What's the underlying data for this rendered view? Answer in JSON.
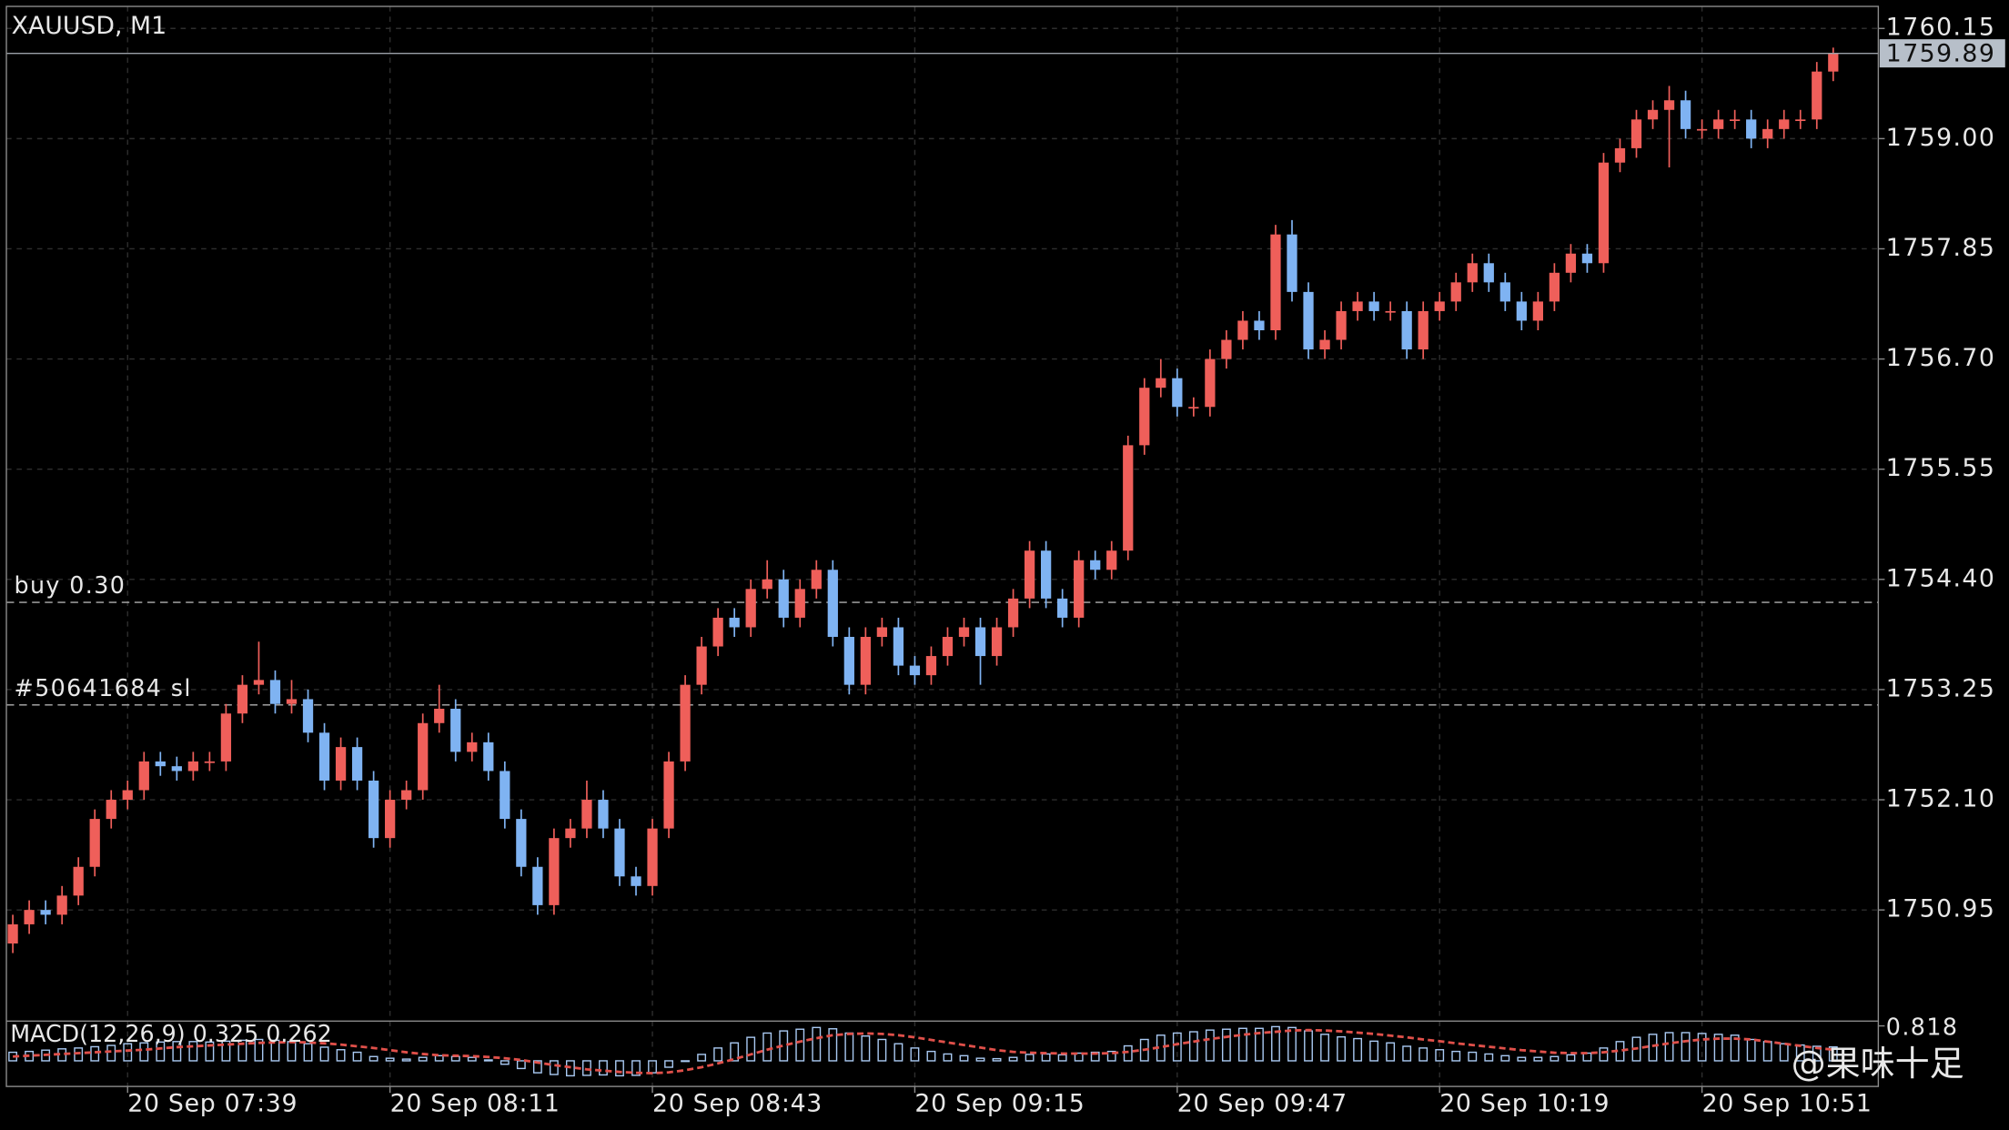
{
  "chart_data": {
    "type": "candlestick",
    "title": "XAUUSD, M1",
    "watermark": "@果味十足",
    "up_color": "#ef5f5a",
    "down_color": "#7fb3f2",
    "grid": true,
    "categories": [
      null,
      null,
      null,
      null,
      null,
      null,
      null,
      "20 Sep 07:39",
      null,
      null,
      null,
      null,
      null,
      null,
      null,
      null,
      null,
      null,
      null,
      null,
      null,
      null,
      null,
      "20 Sep 08:11",
      null,
      null,
      null,
      null,
      null,
      null,
      null,
      null,
      null,
      null,
      null,
      null,
      null,
      null,
      null,
      "20 Sep 08:43",
      null,
      null,
      null,
      null,
      null,
      null,
      null,
      null,
      null,
      null,
      null,
      null,
      null,
      null,
      null,
      "20 Sep 09:15",
      null,
      null,
      null,
      null,
      null,
      null,
      null,
      null,
      null,
      null,
      null,
      null,
      null,
      null,
      null,
      "20 Sep 09:47",
      null,
      null,
      null,
      null,
      null,
      null,
      null,
      null,
      null,
      null,
      null,
      null,
      null,
      null,
      null,
      "20 Sep 10:19",
      null,
      null,
      null,
      null,
      null,
      null,
      null,
      null,
      null,
      null,
      null,
      null,
      null,
      null,
      null,
      "20 Sep 10:51",
      null,
      null,
      null,
      null,
      null,
      null,
      null,
      null
    ],
    "open": [
      1750.6,
      1750.8,
      1750.95,
      1750.9,
      1751.1,
      1751.4,
      1751.9,
      1752.1,
      1752.2,
      1752.5,
      1752.45,
      1752.4,
      1752.5,
      1752.5,
      1753.0,
      1753.3,
      1753.35,
      1753.1,
      1753.15,
      1752.8,
      1752.3,
      1752.65,
      1752.3,
      1751.7,
      1752.1,
      1752.2,
      1752.9,
      1753.05,
      1752.6,
      1752.7,
      1752.4,
      1751.9,
      1751.4,
      1751.0,
      1751.7,
      1751.8,
      1752.1,
      1751.8,
      1751.3,
      1751.2,
      1751.8,
      1752.5,
      1753.3,
      1753.7,
      1754.0,
      1753.9,
      1754.3,
      1754.4,
      1754.0,
      1754.3,
      1754.5,
      1753.8,
      1753.3,
      1753.8,
      1753.9,
      1753.5,
      1753.4,
      1753.6,
      1753.8,
      1753.9,
      1753.6,
      1753.9,
      1754.2,
      1754.7,
      1754.2,
      1754.0,
      1754.6,
      1754.5,
      1754.7,
      1755.8,
      1756.4,
      1756.5,
      1756.2,
      1756.2,
      1756.7,
      1756.9,
      1757.1,
      1757.0,
      1758.0,
      1757.4,
      1756.8,
      1756.9,
      1757.2,
      1757.3,
      1757.2,
      1757.2,
      1756.8,
      1757.2,
      1757.3,
      1757.5,
      1757.7,
      1757.5,
      1757.3,
      1757.1,
      1757.3,
      1757.6,
      1757.8,
      1757.7,
      1758.75,
      1758.9,
      1759.2,
      1759.3,
      1759.4,
      1759.1,
      1759.1,
      1759.2,
      1759.2,
      1759.0,
      1759.1,
      1759.2,
      1759.2,
      1759.7
    ],
    "high": [
      1750.9,
      1751.05,
      1751.05,
      1751.2,
      1751.5,
      1752.0,
      1752.2,
      1752.3,
      1752.6,
      1752.6,
      1752.55,
      1752.6,
      1752.6,
      1753.1,
      1753.4,
      1753.75,
      1753.45,
      1753.35,
      1753.25,
      1752.9,
      1752.75,
      1752.75,
      1752.4,
      1752.2,
      1752.3,
      1753.0,
      1753.3,
      1753.15,
      1752.8,
      1752.8,
      1752.5,
      1752.0,
      1751.5,
      1751.8,
      1751.9,
      1752.3,
      1752.2,
      1751.9,
      1751.4,
      1751.9,
      1752.6,
      1753.4,
      1753.8,
      1754.1,
      1754.1,
      1754.4,
      1754.6,
      1754.5,
      1754.4,
      1754.6,
      1754.6,
      1753.9,
      1753.9,
      1754.0,
      1754.0,
      1753.6,
      1753.7,
      1753.9,
      1754.0,
      1754.0,
      1754.0,
      1754.3,
      1754.8,
      1754.8,
      1754.3,
      1754.7,
      1754.7,
      1754.8,
      1755.9,
      1756.5,
      1756.7,
      1756.6,
      1756.3,
      1756.8,
      1757.0,
      1757.2,
      1757.2,
      1758.1,
      1758.15,
      1757.5,
      1757.0,
      1757.3,
      1757.4,
      1757.4,
      1757.3,
      1757.3,
      1757.3,
      1757.4,
      1757.6,
      1757.8,
      1757.8,
      1757.6,
      1757.4,
      1757.4,
      1757.7,
      1757.9,
      1757.9,
      1758.85,
      1759.0,
      1759.3,
      1759.4,
      1759.55,
      1759.5,
      1759.2,
      1759.3,
      1759.3,
      1759.3,
      1759.2,
      1759.3,
      1759.3,
      1759.8,
      1759.95
    ],
    "low": [
      1750.5,
      1750.7,
      1750.8,
      1750.8,
      1751.0,
      1751.3,
      1751.8,
      1752.0,
      1752.1,
      1752.35,
      1752.3,
      1752.3,
      1752.4,
      1752.4,
      1752.9,
      1753.2,
      1753.0,
      1753.0,
      1752.7,
      1752.2,
      1752.2,
      1752.2,
      1751.6,
      1751.6,
      1752.0,
      1752.1,
      1752.8,
      1752.5,
      1752.5,
      1752.3,
      1751.8,
      1751.3,
      1750.9,
      1750.9,
      1751.6,
      1751.7,
      1751.7,
      1751.2,
      1751.1,
      1751.1,
      1751.7,
      1752.4,
      1753.2,
      1753.6,
      1753.8,
      1753.8,
      1754.2,
      1753.9,
      1753.9,
      1754.2,
      1753.7,
      1753.2,
      1753.2,
      1753.7,
      1753.4,
      1753.3,
      1753.3,
      1753.5,
      1753.7,
      1753.3,
      1753.5,
      1753.8,
      1754.1,
      1754.1,
      1753.9,
      1753.9,
      1754.4,
      1754.4,
      1754.6,
      1755.7,
      1756.3,
      1756.1,
      1756.1,
      1756.1,
      1756.6,
      1756.8,
      1756.9,
      1756.9,
      1757.3,
      1756.7,
      1756.7,
      1756.8,
      1757.1,
      1757.1,
      1757.1,
      1756.7,
      1756.7,
      1757.1,
      1757.2,
      1757.4,
      1757.4,
      1757.2,
      1757.0,
      1757.0,
      1757.2,
      1757.5,
      1757.6,
      1757.6,
      1758.65,
      1758.8,
      1759.1,
      1758.7,
      1759.0,
      1759.0,
      1759.0,
      1759.1,
      1758.9,
      1758.9,
      1759.0,
      1759.1,
      1759.1,
      1759.6
    ],
    "close": [
      1750.8,
      1750.95,
      1750.9,
      1751.1,
      1751.4,
      1751.9,
      1752.1,
      1752.2,
      1752.5,
      1752.45,
      1752.4,
      1752.5,
      1752.5,
      1753.0,
      1753.3,
      1753.35,
      1753.1,
      1753.15,
      1752.8,
      1752.3,
      1752.65,
      1752.3,
      1751.7,
      1752.1,
      1752.2,
      1752.9,
      1753.05,
      1752.6,
      1752.7,
      1752.4,
      1751.9,
      1751.4,
      1751.0,
      1751.7,
      1751.8,
      1752.1,
      1751.8,
      1751.3,
      1751.2,
      1751.8,
      1752.5,
      1753.3,
      1753.7,
      1754.0,
      1753.9,
      1754.3,
      1754.4,
      1754.0,
      1754.3,
      1754.5,
      1753.8,
      1753.3,
      1753.8,
      1753.9,
      1753.5,
      1753.4,
      1753.6,
      1753.8,
      1753.9,
      1753.6,
      1753.9,
      1754.2,
      1754.7,
      1754.2,
      1754.0,
      1754.6,
      1754.5,
      1754.7,
      1755.8,
      1756.4,
      1756.5,
      1756.2,
      1756.2,
      1756.7,
      1756.9,
      1757.1,
      1757.0,
      1758.0,
      1757.4,
      1756.8,
      1756.9,
      1757.2,
      1757.3,
      1757.2,
      1757.2,
      1756.8,
      1757.2,
      1757.3,
      1757.5,
      1757.7,
      1757.5,
      1757.3,
      1757.1,
      1757.3,
      1757.6,
      1757.8,
      1757.7,
      1758.75,
      1758.9,
      1759.2,
      1759.3,
      1759.4,
      1759.1,
      1759.1,
      1759.2,
      1759.2,
      1759.0,
      1759.1,
      1759.2,
      1759.2,
      1759.7,
      1759.89
    ],
    "ylim": [
      1749.79,
      1760.38
    ],
    "yticks": [
      1760.15,
      {
        "value": 1759,
        "label": "1759.00"
      },
      1757.85,
      {
        "value": 1756.7,
        "label": "1756.70"
      },
      1755.55,
      {
        "value": 1754.4,
        "label": "1754.40"
      },
      1753.25,
      {
        "value": 1752.1,
        "label": "1752.10"
      },
      1750.95
    ],
    "orders": [
      {
        "label": "buy 0.30",
        "price": 1754.16
      },
      {
        "label": "#50641684 sl",
        "price": 1753.09
      }
    ],
    "macd": {
      "type": "macd",
      "label": "MACD(12,26,9)",
      "ylim": [
        -0.6,
        0.9
      ],
      "yticks": [
        0.818
      ],
      "series": [
        {
          "color": "#a9c9f2",
          "values": [
            0.2,
            0.22,
            0.25,
            0.28,
            0.3,
            0.33,
            0.36,
            0.4,
            0.42,
            0.44,
            0.45,
            0.45,
            0.44,
            0.46,
            0.48,
            0.5,
            0.48,
            0.45,
            0.4,
            0.32,
            0.26,
            0.2,
            0.1,
            0.06,
            0.04,
            0.08,
            0.12,
            0.1,
            0.08,
            0.02,
            -0.08,
            -0.18,
            -0.28,
            -0.32,
            -0.35,
            -0.34,
            -0.33,
            -0.35,
            -0.34,
            -0.28,
            -0.15,
            0.0,
            0.15,
            0.3,
            0.42,
            0.55,
            0.65,
            0.7,
            0.74,
            0.78,
            0.75,
            0.65,
            0.58,
            0.5,
            0.4,
            0.3,
            0.22,
            0.16,
            0.12,
            0.06,
            0.05,
            0.08,
            0.15,
            0.16,
            0.14,
            0.18,
            0.2,
            0.22,
            0.35,
            0.5,
            0.6,
            0.65,
            0.68,
            0.72,
            0.74,
            0.76,
            0.76,
            0.8,
            0.78,
            0.7,
            0.62,
            0.56,
            0.52,
            0.46,
            0.42,
            0.34,
            0.3,
            0.26,
            0.22,
            0.2,
            0.16,
            0.12,
            0.08,
            0.08,
            0.1,
            0.14,
            0.18,
            0.3,
            0.45,
            0.55,
            0.62,
            0.66,
            0.66,
            0.64,
            0.62,
            0.6,
            0.5,
            0.45,
            0.4,
            0.37,
            0.34,
            0.325
          ]
        },
        {
          "color": "#e0504a",
          "dashed": true,
          "values": [
            0.1,
            0.12,
            0.14,
            0.16,
            0.18,
            0.2,
            0.22,
            0.24,
            0.26,
            0.29,
            0.32,
            0.34,
            0.36,
            0.38,
            0.4,
            0.42,
            0.43,
            0.44,
            0.43,
            0.41,
            0.38,
            0.34,
            0.3,
            0.25,
            0.2,
            0.16,
            0.13,
            0.12,
            0.11,
            0.09,
            0.06,
            0.02,
            -0.04,
            -0.1,
            -0.15,
            -0.2,
            -0.23,
            -0.26,
            -0.28,
            -0.29,
            -0.27,
            -0.22,
            -0.15,
            -0.06,
            0.04,
            0.15,
            0.26,
            0.36,
            0.45,
            0.53,
            0.6,
            0.63,
            0.64,
            0.63,
            0.6,
            0.55,
            0.49,
            0.43,
            0.37,
            0.31,
            0.25,
            0.21,
            0.19,
            0.18,
            0.17,
            0.17,
            0.17,
            0.18,
            0.21,
            0.26,
            0.32,
            0.39,
            0.45,
            0.51,
            0.56,
            0.61,
            0.65,
            0.68,
            0.71,
            0.72,
            0.71,
            0.69,
            0.66,
            0.63,
            0.59,
            0.55,
            0.5,
            0.46,
            0.41,
            0.37,
            0.33,
            0.29,
            0.25,
            0.22,
            0.19,
            0.18,
            0.18,
            0.2,
            0.24,
            0.29,
            0.35,
            0.41,
            0.46,
            0.5,
            0.52,
            0.52,
            0.5,
            0.45,
            0.4,
            0.35,
            0.3,
            0.262
          ]
        }
      ]
    }
  }
}
